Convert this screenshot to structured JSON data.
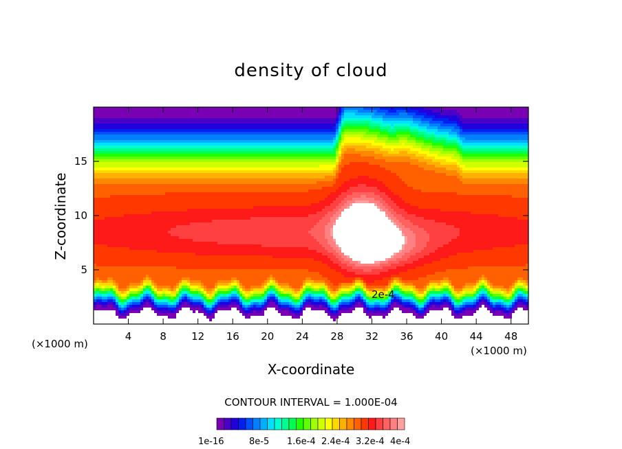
{
  "chart_data": {
    "type": "heatmap",
    "title": "density of cloud",
    "xlabel": "X-coordinate",
    "ylabel": "Z-coordinate",
    "x_unit_left": "(×1000 m)",
    "x_unit_right": "(×1000 m)",
    "xlim": [
      0,
      50
    ],
    "ylim": [
      0,
      20
    ],
    "x_ticks": [
      4,
      8,
      12,
      16,
      20,
      24,
      28,
      32,
      36,
      40,
      44,
      48
    ],
    "x_tick_labels": [
      "4",
      "8",
      "12",
      "16",
      "20",
      "24",
      "28",
      "32",
      "36",
      "40",
      "44",
      "48"
    ],
    "y_ticks": [
      5,
      10,
      15
    ],
    "y_tick_labels": [
      "5",
      "10",
      "15"
    ],
    "contour_interval": "CONTOUR INTERVAL = 1.000E-04",
    "contour_label": "2e-4",
    "contour_levels": [
      0.0002,
      0.0003,
      0.0004
    ],
    "colorbar_labels": [
      "1e-16",
      "8e-5",
      "1.6e-4",
      "2.4e-4",
      "3.2e-4",
      "4e-4"
    ],
    "colorbar_colors": [
      "#7a00b4",
      "#4b00c8",
      "#2000dc",
      "#0020f0",
      "#0050ff",
      "#0080ff",
      "#00b0ff",
      "#00e0ff",
      "#00ffd0",
      "#00ff90",
      "#00ff50",
      "#20ff00",
      "#60ff00",
      "#a0ff00",
      "#d0ff00",
      "#ffff00",
      "#ffd800",
      "#ffb000",
      "#ff8800",
      "#ff6000",
      "#ff3800",
      "#ff1a1a",
      "#ff4040",
      "#ff6060",
      "#ff8080",
      "#ffa0a0"
    ]
  }
}
